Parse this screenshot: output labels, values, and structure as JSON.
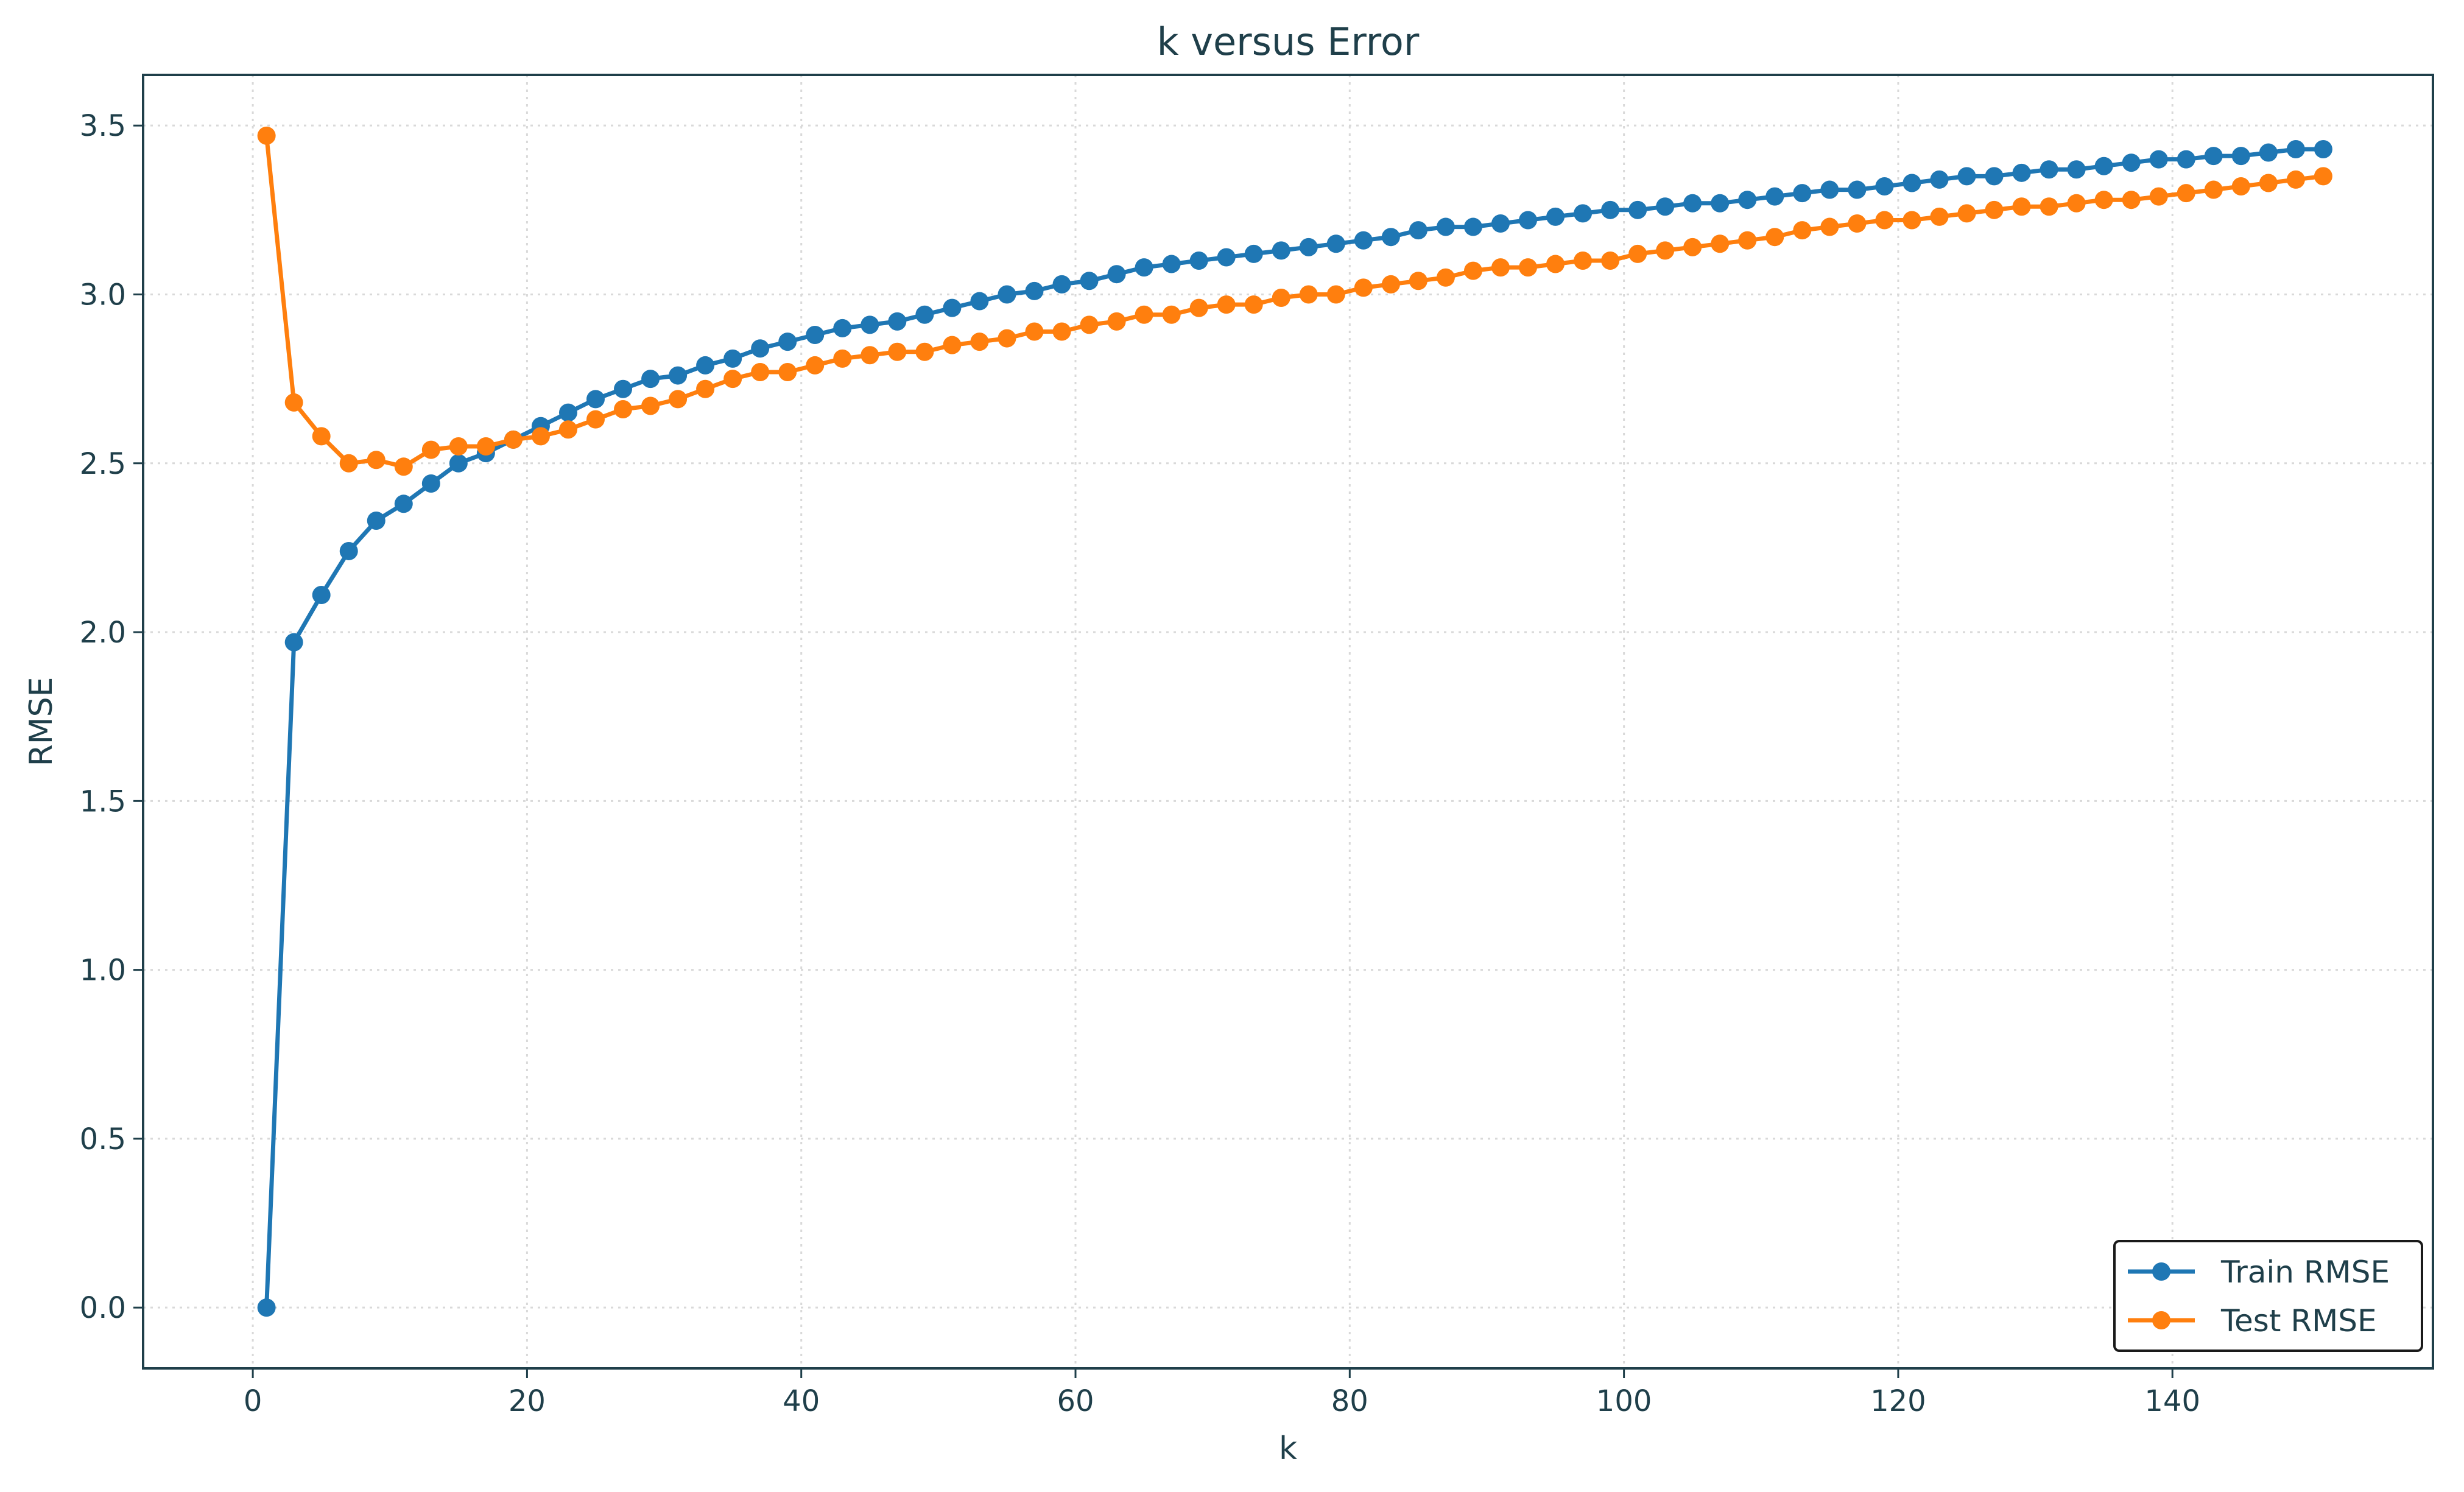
{
  "chart_data": {
    "type": "line",
    "title": "k versus Error",
    "xlabel": "k",
    "ylabel": "RMSE",
    "xlim": [
      -8,
      159
    ],
    "ylim": [
      -0.18,
      3.65
    ],
    "xticks": [
      0,
      20,
      40,
      60,
      80,
      100,
      120,
      140
    ],
    "yticks": [
      0.0,
      0.5,
      1.0,
      1.5,
      2.0,
      2.5,
      3.0,
      3.5
    ],
    "xtick_labels": [
      "0",
      "20",
      "40",
      "60",
      "80",
      "100",
      "120",
      "140"
    ],
    "ytick_labels": [
      "0.0",
      "0.5",
      "1.0",
      "1.5",
      "2.0",
      "2.5",
      "3.0",
      "3.5"
    ],
    "grid": true,
    "legend_position": "lower-right",
    "x": [
      1,
      3,
      5,
      7,
      9,
      11,
      13,
      15,
      17,
      19,
      21,
      23,
      25,
      27,
      29,
      31,
      33,
      35,
      37,
      39,
      41,
      43,
      45,
      47,
      49,
      51,
      53,
      55,
      57,
      59,
      61,
      63,
      65,
      67,
      69,
      71,
      73,
      75,
      77,
      79,
      81,
      83,
      85,
      87,
      89,
      91,
      93,
      95,
      97,
      99,
      101,
      103,
      105,
      107,
      109,
      111,
      113,
      115,
      117,
      119,
      121,
      123,
      125,
      127,
      129,
      131,
      133,
      135,
      137,
      139,
      141,
      143,
      145,
      147,
      149,
      151
    ],
    "series": [
      {
        "name": "Train RMSE",
        "color": "#1f77b4",
        "values": [
          0.0,
          1.97,
          2.11,
          2.24,
          2.33,
          2.38,
          2.44,
          2.5,
          2.53,
          2.57,
          2.61,
          2.65,
          2.69,
          2.72,
          2.75,
          2.76,
          2.79,
          2.81,
          2.84,
          2.86,
          2.88,
          2.9,
          2.91,
          2.92,
          2.94,
          2.96,
          2.98,
          3.0,
          3.01,
          3.03,
          3.04,
          3.06,
          3.08,
          3.09,
          3.1,
          3.11,
          3.12,
          3.13,
          3.14,
          3.15,
          3.16,
          3.17,
          3.19,
          3.2,
          3.2,
          3.21,
          3.22,
          3.23,
          3.24,
          3.25,
          3.25,
          3.26,
          3.27,
          3.27,
          3.28,
          3.29,
          3.3,
          3.31,
          3.31,
          3.32,
          3.33,
          3.34,
          3.35,
          3.35,
          3.36,
          3.37,
          3.37,
          3.38,
          3.39,
          3.4,
          3.4,
          3.41,
          3.41,
          3.42,
          3.43,
          3.43
        ]
      },
      {
        "name": "Test RMSE",
        "color": "#ff7f0e",
        "values": [
          3.47,
          2.68,
          2.58,
          2.5,
          2.51,
          2.49,
          2.54,
          2.55,
          2.55,
          2.57,
          2.58,
          2.6,
          2.63,
          2.66,
          2.67,
          2.69,
          2.72,
          2.75,
          2.77,
          2.77,
          2.79,
          2.81,
          2.82,
          2.83,
          2.83,
          2.85,
          2.86,
          2.87,
          2.89,
          2.89,
          2.91,
          2.92,
          2.94,
          2.94,
          2.96,
          2.97,
          2.97,
          2.99,
          3.0,
          3.0,
          3.02,
          3.03,
          3.04,
          3.05,
          3.07,
          3.08,
          3.08,
          3.09,
          3.1,
          3.1,
          3.12,
          3.13,
          3.14,
          3.15,
          3.16,
          3.17,
          3.19,
          3.2,
          3.21,
          3.22,
          3.22,
          3.23,
          3.24,
          3.25,
          3.26,
          3.26,
          3.27,
          3.28,
          3.28,
          3.29,
          3.3,
          3.31,
          3.32,
          3.33,
          3.34,
          3.35
        ]
      }
    ],
    "colors": {
      "axis": "#1f3f4a",
      "grid": "#d9d9d9"
    }
  }
}
